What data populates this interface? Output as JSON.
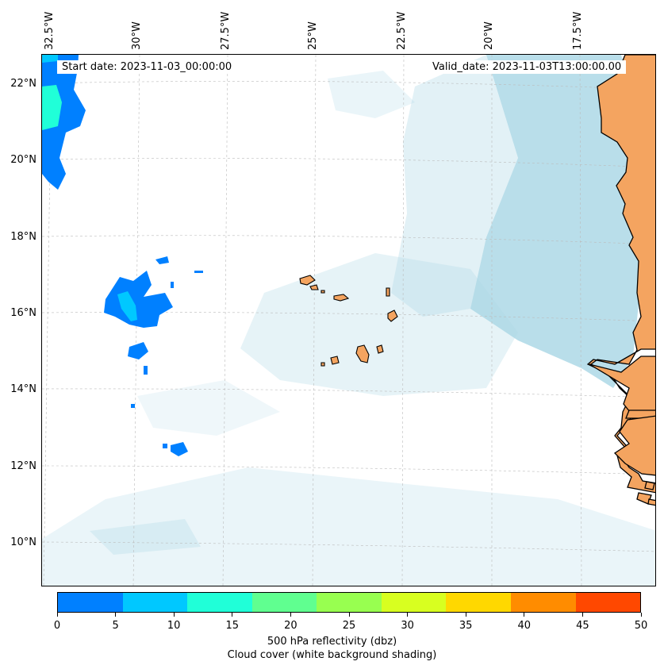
{
  "map": {
    "start_date": "Start date: 2023-11-03_00:00:00",
    "valid_date": "Valid_date: 2023-11-03T13:00:00.00",
    "lon_labels": [
      "32.5°W",
      "30°W",
      "27.5°W",
      "25°W",
      "22.5°W",
      "20°W",
      "17.5°W"
    ],
    "lat_labels": [
      "22°N",
      "20°N",
      "18°N",
      "16°N",
      "14°N",
      "12°N",
      "10°N"
    ],
    "colors": {
      "land": "#f4a460",
      "cloud": "#add8e6",
      "ocean": "#ffffff",
      "coast": "#000000"
    }
  },
  "colorbar": {
    "ticks": [
      "0",
      "5",
      "10",
      "15",
      "20",
      "25",
      "30",
      "35",
      "40",
      "45",
      "50"
    ],
    "colors": [
      "#0080ff",
      "#00c8ff",
      "#20ffd8",
      "#60ff90",
      "#98ff50",
      "#d8ff20",
      "#ffd800",
      "#ff8c00",
      "#ff4800"
    ],
    "label_line1": "500 hPa reflectivity (dbz)",
    "label_line2": "Cloud cover (white background shading)"
  }
}
